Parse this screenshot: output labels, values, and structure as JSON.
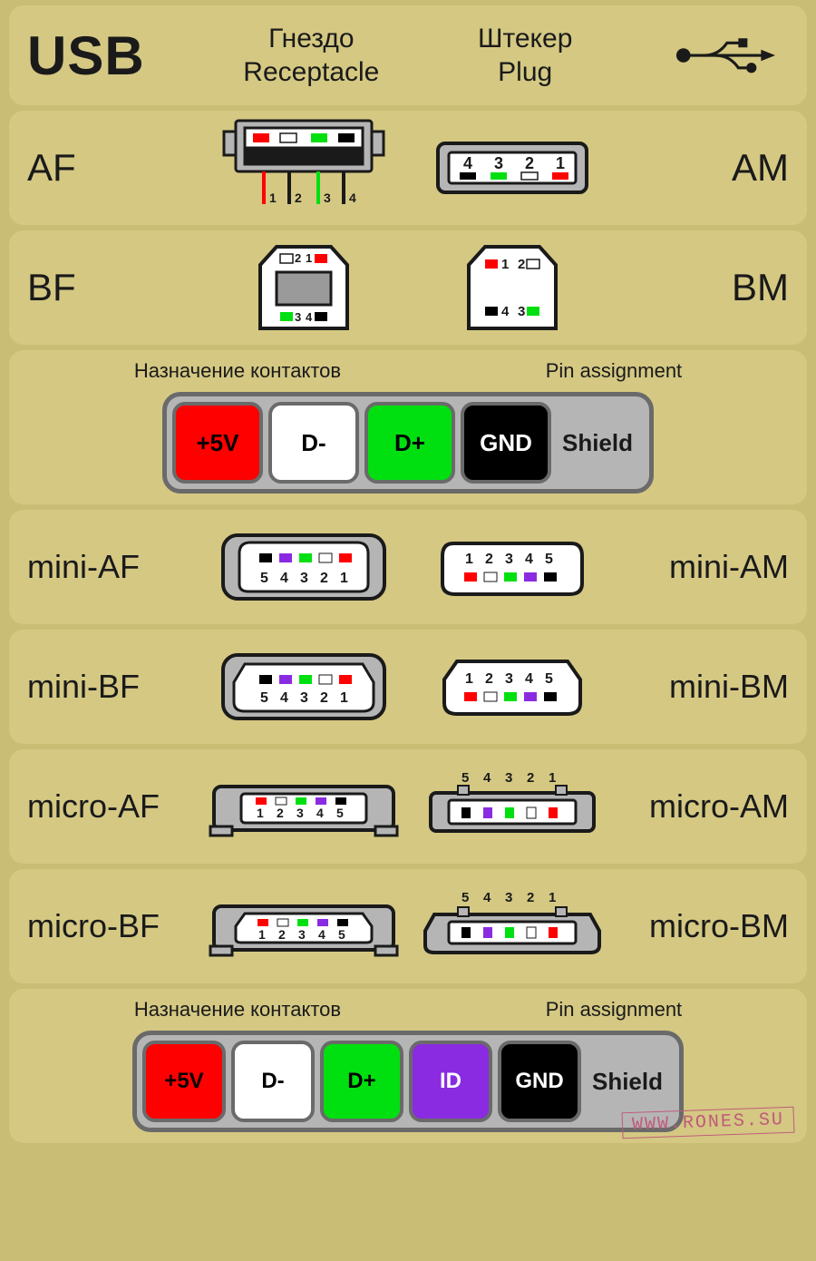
{
  "header": {
    "title": "USB",
    "col_receptacle_ru": "Гнездо",
    "col_receptacle_en": "Receptacle",
    "col_plug_ru": "Штекер",
    "col_plug_en": "Plug"
  },
  "colors": {
    "bg_outer": "#c9bd76",
    "bg_row": "#d4c883",
    "stroke": "#1a1a1a",
    "metal": "#b5b5b5",
    "metal_dark": "#8a8a8a",
    "white": "#ffffff",
    "red": "#ff0000",
    "green": "#00e010",
    "black": "#000000",
    "purple": "#8a2be2",
    "grey_border": "#6a6a6a"
  },
  "connectors": [
    {
      "left_label": "AF",
      "right_label": "AM",
      "type": "A",
      "label_class": ""
    },
    {
      "left_label": "BF",
      "right_label": "BM",
      "type": "B",
      "label_class": ""
    },
    {
      "left_label": "mini-AF",
      "right_label": "mini-AM",
      "type": "miniA",
      "label_class": "sm"
    },
    {
      "left_label": "mini-BF",
      "right_label": "mini-BM",
      "type": "miniB",
      "label_class": "sm"
    },
    {
      "left_label": "micro-AF",
      "right_label": "micro-AM",
      "type": "microA",
      "label_class": "sm"
    },
    {
      "left_label": "micro-BF",
      "right_label": "micro-BM",
      "type": "microB",
      "label_class": "sm"
    }
  ],
  "legend_usb": {
    "title_ru": "Назначение контактов",
    "title_en": "Pin assignment",
    "pins": [
      {
        "label": "+5V",
        "bg": "#ff0000",
        "fg": "#000000"
      },
      {
        "label": "D-",
        "bg": "#ffffff",
        "fg": "#000000"
      },
      {
        "label": "D+",
        "bg": "#00e010",
        "fg": "#000000"
      },
      {
        "label": "GND",
        "bg": "#000000",
        "fg": "#ffffff"
      }
    ],
    "shield": "Shield"
  },
  "legend_mini": {
    "title_ru": "Назначение контактов",
    "title_en": "Pin assignment",
    "pins": [
      {
        "label": "+5V",
        "bg": "#ff0000",
        "fg": "#000000"
      },
      {
        "label": "D-",
        "bg": "#ffffff",
        "fg": "#000000"
      },
      {
        "label": "D+",
        "bg": "#00e010",
        "fg": "#000000"
      },
      {
        "label": "ID",
        "bg": "#8a2be2",
        "fg": "#ffffff"
      },
      {
        "label": "GND",
        "bg": "#000000",
        "fg": "#ffffff"
      }
    ],
    "shield": "Shield"
  },
  "pins4": [
    {
      "n": "1",
      "c": "#ff0000"
    },
    {
      "n": "2",
      "c": "#ffffff"
    },
    {
      "n": "3",
      "c": "#00e010"
    },
    {
      "n": "4",
      "c": "#000000"
    }
  ],
  "pins5": [
    {
      "n": "1",
      "c": "#ff0000"
    },
    {
      "n": "2",
      "c": "#ffffff"
    },
    {
      "n": "3",
      "c": "#00e010"
    },
    {
      "n": "4",
      "c": "#8a2be2"
    },
    {
      "n": "5",
      "c": "#000000"
    }
  ],
  "watermark": "WWW.RONES.SU"
}
